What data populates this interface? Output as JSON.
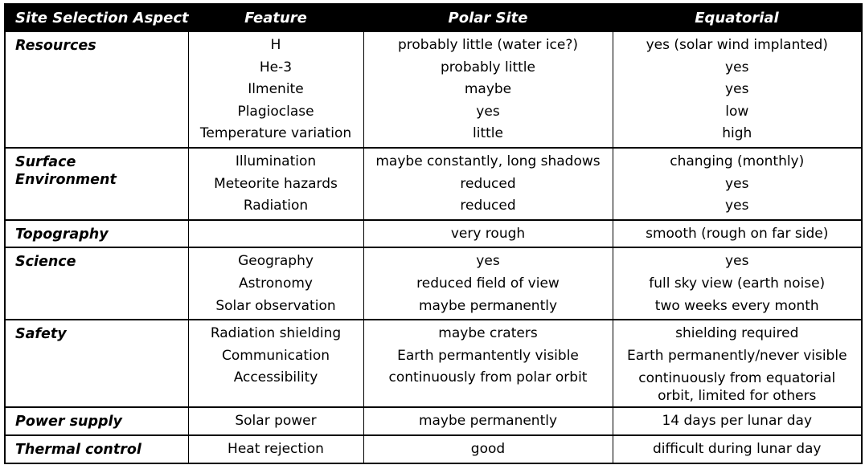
{
  "table": {
    "headers": [
      "Site Selection Aspect",
      "Feature",
      "Polar Site",
      "Equatorial"
    ],
    "rows": [
      {
        "aspect": [
          "Resources"
        ],
        "features": [
          "H",
          "He-3",
          "Ilmenite",
          "Plagioclase",
          "Temperature variation"
        ],
        "polar": [
          "probably little (water ice?)",
          "probably little",
          "maybe",
          "yes",
          "little"
        ],
        "equatorial": [
          "yes (solar wind implanted)",
          "yes",
          "yes",
          "low",
          "high"
        ]
      },
      {
        "aspect": [
          "Surface",
          "Environment"
        ],
        "features": [
          "Illumination",
          "Meteorite hazards",
          "Radiation"
        ],
        "polar": [
          "maybe constantly, long shadows",
          "reduced",
          "reduced"
        ],
        "equatorial": [
          "changing (monthly)",
          "yes",
          "yes"
        ]
      },
      {
        "aspect": [
          "Topography"
        ],
        "features": [
          ""
        ],
        "polar": [
          "very rough"
        ],
        "equatorial": [
          "smooth (rough on far side)"
        ]
      },
      {
        "aspect": [
          "Science"
        ],
        "features": [
          "Geography",
          "Astronomy",
          "Solar observation"
        ],
        "polar": [
          "yes",
          "reduced field of view",
          "maybe permanently"
        ],
        "equatorial": [
          "yes",
          "full sky view (earth noise)",
          "two weeks every month"
        ]
      },
      {
        "aspect": [
          "Safety"
        ],
        "features": [
          "Radiation shielding",
          "Communication",
          "Accessibility"
        ],
        "polar": [
          "maybe craters",
          "Earth permantently visible",
          "continuously from polar orbit"
        ],
        "equatorial": [
          "shielding required",
          "Earth permanently/never visible",
          [
            "continuously from equatorial",
            "orbit, limited for others"
          ]
        ]
      },
      {
        "aspect": [
          "Power supply"
        ],
        "features": [
          "Solar power"
        ],
        "polar": [
          "maybe permanently"
        ],
        "equatorial": [
          "14 days per lunar day"
        ]
      },
      {
        "aspect": [
          "Thermal control"
        ],
        "features": [
          "Heat rejection"
        ],
        "polar": [
          "good"
        ],
        "equatorial": [
          "difficult during lunar day"
        ]
      }
    ]
  }
}
